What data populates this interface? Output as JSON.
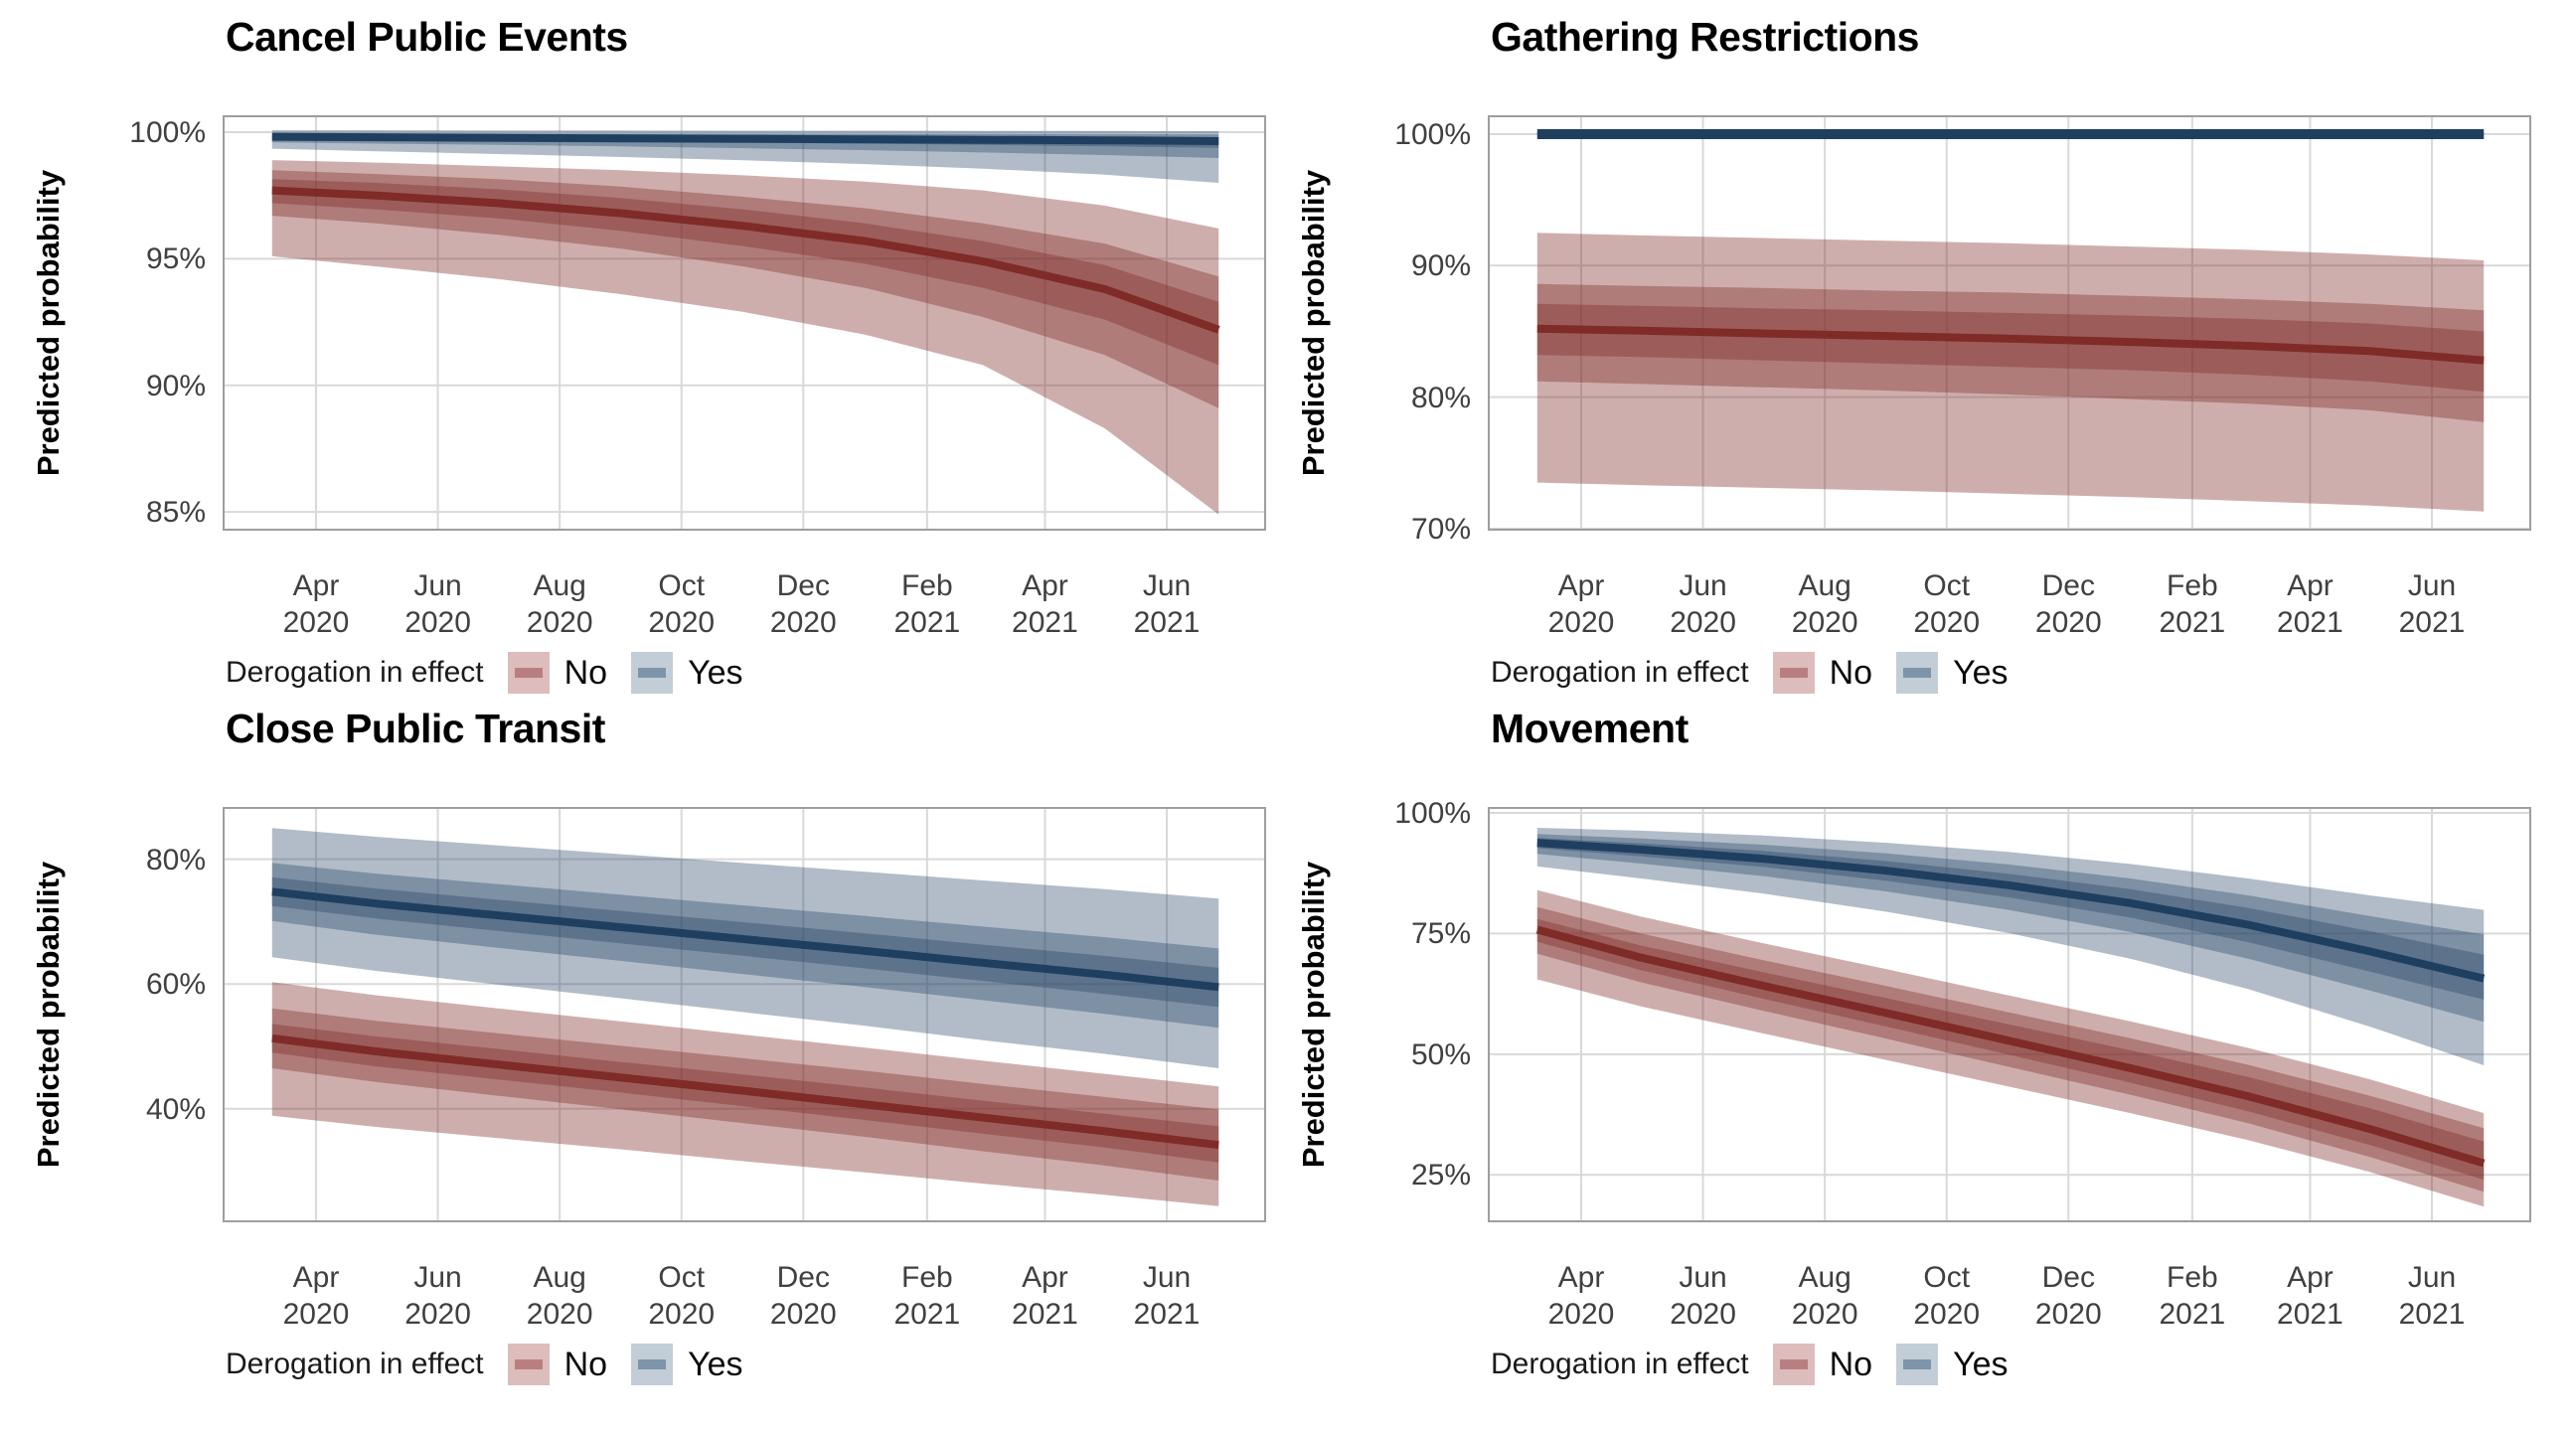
{
  "legend": {
    "title": "Derogation in effect",
    "items": [
      {
        "label": "No",
        "swatch_bg": "#ddbcbc",
        "swatch_line": "#b97f80"
      },
      {
        "label": "Yes",
        "swatch_bg": "#c2cdd7",
        "swatch_line": "#7e94a9"
      }
    ]
  },
  "colors": {
    "no_line": "#7f2b27",
    "yes_line": "#1f3f61",
    "no_band_alpha": 0.38,
    "yes_band_alpha": 0.35,
    "grid": "#d9d9d9",
    "panel_border": "#9e9e9e",
    "tick_text": "#404040",
    "title_text": "#000000"
  },
  "x_axis": {
    "point_dates": [
      "2020-03-10",
      "2020-05-01",
      "2020-07-01",
      "2020-09-01",
      "2020-11-01",
      "2021-01-01",
      "2021-03-01",
      "2021-05-01",
      "2021-06-27"
    ],
    "ticks": [
      {
        "month": "Apr",
        "year": "2020",
        "date": "2020-04-01"
      },
      {
        "month": "Jun",
        "year": "2020",
        "date": "2020-06-01"
      },
      {
        "month": "Aug",
        "year": "2020",
        "date": "2020-08-01"
      },
      {
        "month": "Oct",
        "year": "2020",
        "date": "2020-10-01"
      },
      {
        "month": "Dec",
        "year": "2020",
        "date": "2020-12-01"
      },
      {
        "month": "Feb",
        "year": "2021",
        "date": "2021-02-01"
      },
      {
        "month": "Apr",
        "year": "2021",
        "date": "2021-04-01"
      },
      {
        "month": "Jun",
        "year": "2021",
        "date": "2021-06-01"
      }
    ]
  },
  "chart_data": [
    {
      "type": "area",
      "title": "Cancel Public Events",
      "ylabel": "Predicted probability",
      "ylim": [
        84.3,
        100.63
      ],
      "yticks": [
        {
          "v": 100,
          "label": "100%"
        },
        {
          "v": 95,
          "label": "95%"
        },
        {
          "v": 90,
          "label": "90%"
        },
        {
          "v": 85,
          "label": "85%"
        }
      ],
      "series": [
        {
          "name": "No",
          "lw": 8,
          "center": [
            97.7,
            97.5,
            97.2,
            96.8,
            96.3,
            95.7,
            94.9,
            93.8,
            92.2
          ],
          "b50_hi": [
            98.15,
            98.0,
            97.75,
            97.4,
            96.95,
            96.4,
            95.7,
            94.75,
            93.3
          ],
          "b50_lo": [
            97.2,
            96.95,
            96.6,
            96.1,
            95.5,
            94.8,
            93.85,
            92.6,
            90.8
          ],
          "b80_hi": [
            98.5,
            98.35,
            98.15,
            97.85,
            97.45,
            97.0,
            96.4,
            95.6,
            94.3
          ],
          "b80_lo": [
            96.7,
            96.4,
            95.95,
            95.4,
            94.7,
            93.85,
            92.7,
            91.2,
            89.1
          ],
          "b95_hi": [
            98.9,
            98.8,
            98.65,
            98.5,
            98.3,
            98.05,
            97.7,
            97.1,
            96.2
          ],
          "b95_lo": [
            95.1,
            94.7,
            94.2,
            93.6,
            92.9,
            92.0,
            90.8,
            88.3,
            84.9
          ]
        },
        {
          "name": "Yes",
          "lw": 8,
          "center": [
            99.82,
            99.8,
            99.78,
            99.76,
            99.74,
            99.72,
            99.7,
            99.68,
            99.65
          ],
          "b50_hi": [
            99.9,
            99.89,
            99.88,
            99.87,
            99.86,
            99.85,
            99.84,
            99.82,
            99.8
          ],
          "b50_lo": [
            99.72,
            99.69,
            99.66,
            99.63,
            99.59,
            99.55,
            99.5,
            99.44,
            99.38
          ],
          "b80_hi": [
            99.96,
            99.95,
            99.95,
            99.94,
            99.94,
            99.93,
            99.93,
            99.92,
            99.91
          ],
          "b80_lo": [
            99.6,
            99.55,
            99.5,
            99.44,
            99.37,
            99.29,
            99.2,
            99.1,
            98.98
          ],
          "b95_hi": [
            100.08,
            100.08,
            100.07,
            100.07,
            100.06,
            100.06,
            100.05,
            100.05,
            100.04
          ],
          "b95_lo": [
            99.35,
            99.25,
            99.14,
            99.02,
            98.89,
            98.74,
            98.56,
            98.32,
            98.0
          ]
        }
      ]
    },
    {
      "type": "area",
      "title": "Gathering Restrictions",
      "ylabel": "Predicted probability",
      "ylim": [
        69.92,
        101.36
      ],
      "yticks": [
        {
          "v": 100,
          "label": "100%"
        },
        {
          "v": 90,
          "label": "90%"
        },
        {
          "v": 80,
          "label": "80%"
        },
        {
          "v": 70,
          "label": "70%"
        }
      ],
      "series": [
        {
          "name": "No",
          "lw": 8,
          "center": [
            85.2,
            85.05,
            84.85,
            84.65,
            84.45,
            84.2,
            83.9,
            83.5,
            82.8
          ],
          "b50_hi": [
            87.1,
            86.95,
            86.75,
            86.6,
            86.4,
            86.2,
            85.95,
            85.6,
            85.0
          ],
          "b50_lo": [
            83.2,
            83.05,
            82.8,
            82.55,
            82.3,
            82.05,
            81.7,
            81.2,
            80.4
          ],
          "b80_hi": [
            88.6,
            88.45,
            88.3,
            88.1,
            87.95,
            87.7,
            87.45,
            87.1,
            86.6
          ],
          "b80_lo": [
            81.2,
            81.0,
            80.75,
            80.5,
            80.2,
            79.85,
            79.5,
            79.0,
            78.1
          ],
          "b95_hi": [
            92.5,
            92.3,
            92.1,
            91.9,
            91.7,
            91.45,
            91.2,
            90.85,
            90.4
          ],
          "b95_lo": [
            73.5,
            73.3,
            73.1,
            72.9,
            72.65,
            72.4,
            72.1,
            71.75,
            71.3
          ]
        },
        {
          "name": "Yes",
          "lw": 10,
          "center": [
            100,
            100,
            100,
            100,
            100,
            100,
            100,
            100,
            100
          ],
          "b50_hi": [
            100.12,
            100.12,
            100.12,
            100.12,
            100.12,
            100.12,
            100.12,
            100.12,
            100.12
          ],
          "b50_lo": [
            99.88,
            99.88,
            99.88,
            99.88,
            99.88,
            99.88,
            99.88,
            99.88,
            99.88
          ],
          "b80_hi": [
            100.2,
            100.2,
            100.2,
            100.2,
            100.2,
            100.2,
            100.2,
            100.2,
            100.2
          ],
          "b80_lo": [
            99.8,
            99.8,
            99.8,
            99.8,
            99.8,
            99.8,
            99.8,
            99.8,
            99.8
          ],
          "b95_hi": [
            100.3,
            100.3,
            100.3,
            100.3,
            100.3,
            100.3,
            100.3,
            100.3,
            100.3
          ],
          "b95_lo": [
            99.7,
            99.7,
            99.7,
            99.7,
            99.7,
            99.7,
            99.7,
            99.7,
            99.7
          ]
        }
      ]
    },
    {
      "type": "area",
      "title": "Close Public Transit",
      "ylabel": "Predicted probability",
      "ylim": [
        21.97,
        88.22
      ],
      "yticks": [
        {
          "v": 80,
          "label": "80%"
        },
        {
          "v": 60,
          "label": "60%"
        },
        {
          "v": 40,
          "label": "40%"
        }
      ],
      "series": [
        {
          "name": "No",
          "lw": 8,
          "center": [
            51.3,
            49.2,
            47.1,
            45.0,
            42.9,
            40.7,
            38.6,
            36.4,
            34.2
          ],
          "b50_hi": [
            53.6,
            51.6,
            49.6,
            47.5,
            45.5,
            43.4,
            41.3,
            39.2,
            37.2
          ],
          "b50_lo": [
            49.0,
            46.8,
            44.7,
            42.6,
            40.4,
            38.2,
            36.0,
            33.8,
            31.4
          ],
          "b80_hi": [
            56.1,
            54.1,
            52.1,
            50.1,
            48.1,
            46.1,
            44.0,
            41.9,
            39.9
          ],
          "b80_lo": [
            46.5,
            44.3,
            42.1,
            39.9,
            37.7,
            35.5,
            33.2,
            30.9,
            28.5
          ],
          "b95_hi": [
            60.3,
            58.2,
            56.1,
            54.0,
            51.9,
            49.8,
            47.7,
            45.6,
            43.6
          ],
          "b95_lo": [
            38.9,
            37.1,
            35.3,
            33.5,
            31.6,
            29.8,
            28.0,
            26.2,
            24.4
          ]
        },
        {
          "name": "Yes",
          "lw": 8,
          "center": [
            74.8,
            72.9,
            71.0,
            69.1,
            67.2,
            65.3,
            63.4,
            61.5,
            59.5
          ],
          "b50_hi": [
            77.1,
            75.3,
            73.5,
            71.7,
            69.9,
            68.1,
            66.3,
            64.5,
            62.6
          ],
          "b50_lo": [
            72.5,
            70.5,
            68.5,
            66.5,
            64.5,
            62.5,
            60.5,
            58.4,
            56.3
          ],
          "b80_hi": [
            79.4,
            77.7,
            76.0,
            74.3,
            72.6,
            70.9,
            69.2,
            67.5,
            65.7
          ],
          "b80_lo": [
            70.1,
            67.9,
            65.8,
            63.7,
            61.6,
            59.5,
            57.4,
            55.2,
            53.0
          ],
          "b95_hi": [
            85.0,
            83.6,
            82.2,
            80.8,
            79.4,
            78.0,
            76.6,
            75.2,
            73.7
          ],
          "b95_lo": [
            64.3,
            62.1,
            59.9,
            57.7,
            55.5,
            53.3,
            51.0,
            48.8,
            46.5
          ]
        }
      ]
    },
    {
      "type": "area",
      "title": "Movement",
      "ylabel": "Predicted probability",
      "ylim": [
        15.38,
        101.02
      ],
      "yticks": [
        {
          "v": 100,
          "label": "100%"
        },
        {
          "v": 75,
          "label": "75%"
        },
        {
          "v": 50,
          "label": "50%"
        },
        {
          "v": 25,
          "label": "25%"
        }
      ],
      "series": [
        {
          "name": "No",
          "lw": 8,
          "center": [
            75.8,
            70.0,
            64.2,
            58.5,
            52.8,
            47.1,
            41.3,
            34.5,
            27.4
          ],
          "b50_hi": [
            78.0,
            72.5,
            67.0,
            61.6,
            56.2,
            50.8,
            45.3,
            38.8,
            31.9
          ],
          "b50_lo": [
            73.3,
            67.4,
            61.5,
            55.7,
            49.9,
            44.1,
            38.2,
            31.2,
            24.0
          ],
          "b80_hi": [
            80.5,
            75.0,
            69.5,
            64.1,
            58.7,
            53.3,
            47.8,
            41.4,
            34.7
          ],
          "b80_lo": [
            70.8,
            64.9,
            59.0,
            53.2,
            47.4,
            41.6,
            35.7,
            28.7,
            21.5
          ],
          "b95_hi": [
            84.0,
            78.5,
            73.0,
            67.6,
            62.2,
            56.8,
            51.3,
            44.8,
            37.8
          ],
          "b95_lo": [
            65.5,
            59.9,
            54.3,
            48.8,
            43.3,
            37.8,
            32.2,
            25.6,
            18.4
          ]
        },
        {
          "name": "Yes",
          "lw": 8,
          "center": [
            93.8,
            92.4,
            90.5,
            88.0,
            85.0,
            81.3,
            76.8,
            71.3,
            65.7
          ],
          "b50_hi": [
            94.8,
            93.7,
            92.1,
            90.0,
            87.4,
            84.2,
            80.3,
            75.5,
            70.6
          ],
          "b50_lo": [
            92.7,
            91.0,
            88.8,
            85.9,
            82.5,
            78.3,
            73.2,
            67.1,
            61.3
          ],
          "b80_hi": [
            95.6,
            94.7,
            93.4,
            91.6,
            89.3,
            86.4,
            82.9,
            78.6,
            74.8
          ],
          "b80_lo": [
            91.5,
            89.5,
            86.9,
            83.7,
            79.9,
            75.3,
            69.8,
            63.2,
            56.7
          ],
          "b95_hi": [
            96.9,
            96.3,
            95.3,
            93.8,
            91.9,
            89.4,
            86.4,
            82.9,
            79.9
          ],
          "b95_lo": [
            88.9,
            86.4,
            83.3,
            79.5,
            75.1,
            69.8,
            63.5,
            55.7,
            47.7
          ]
        }
      ]
    }
  ]
}
